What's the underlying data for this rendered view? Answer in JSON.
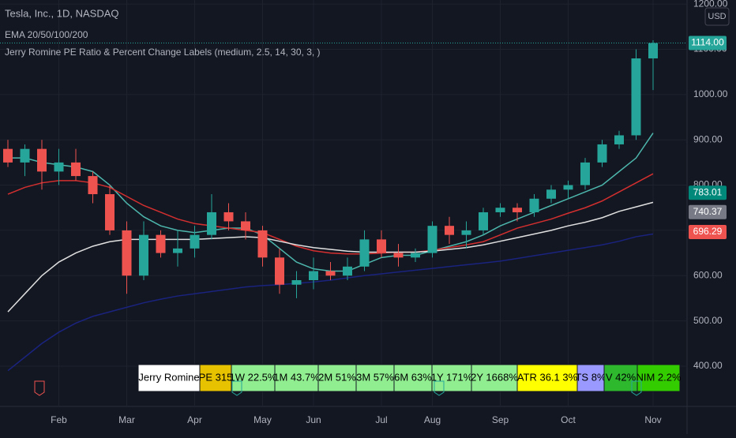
{
  "chart_data": {
    "type": "candlestick",
    "title": "Tesla, Inc., 1D, NASDAQ",
    "subtitles": [
      "EMA 20/50/100/200",
      "Jerry Romine PE Ratio & Percent Change Labels (medium, 2.5, 14, 30, 3, )"
    ],
    "currency": "USD",
    "categories": [
      null,
      null,
      null,
      "Feb",
      null,
      null,
      null,
      "Mar",
      null,
      null,
      null,
      "Apr",
      null,
      null,
      null,
      "May",
      null,
      null,
      "Jun",
      null,
      null,
      null,
      "Jul",
      null,
      null,
      "Aug",
      null,
      null,
      null,
      "Sep",
      null,
      null,
      null,
      "Oct",
      null,
      null,
      null,
      null,
      "Nov"
    ],
    "open": [
      880,
      850,
      880,
      830,
      850,
      820,
      780,
      700,
      600,
      690,
      650,
      660,
      690,
      740,
      720,
      700,
      640,
      580,
      590,
      610,
      600,
      620,
      680,
      650,
      640,
      650,
      710,
      690,
      700,
      740,
      750,
      740,
      770,
      790,
      800,
      850,
      890,
      910,
      1080
    ],
    "high": [
      900,
      890,
      900,
      880,
      880,
      830,
      800,
      720,
      720,
      700,
      700,
      710,
      780,
      760,
      740,
      710,
      660,
      610,
      640,
      630,
      640,
      700,
      700,
      670,
      660,
      720,
      730,
      720,
      750,
      760,
      760,
      780,
      800,
      810,
      860,
      900,
      920,
      1100,
      1120
    ],
    "low": [
      840,
      820,
      790,
      800,
      810,
      760,
      690,
      560,
      590,
      640,
      620,
      640,
      680,
      700,
      680,
      620,
      560,
      550,
      570,
      590,
      590,
      610,
      640,
      620,
      630,
      640,
      670,
      660,
      690,
      730,
      720,
      730,
      760,
      770,
      790,
      840,
      880,
      900,
      1010
    ],
    "close": [
      850,
      880,
      830,
      850,
      820,
      780,
      700,
      600,
      690,
      650,
      660,
      690,
      740,
      720,
      700,
      640,
      580,
      590,
      610,
      600,
      620,
      680,
      650,
      640,
      650,
      710,
      690,
      700,
      740,
      750,
      740,
      770,
      790,
      800,
      850,
      890,
      910,
      1080,
      1114
    ],
    "up_color": "#26a69a",
    "down_color": "#ef5350",
    "series": [
      {
        "name": "EMA 20",
        "color": "#4db6ac",
        "values": [
          860,
          860,
          850,
          845,
          840,
          830,
          800,
          760,
          730,
          710,
          700,
          695,
          700,
          705,
          705,
          690,
          660,
          630,
          615,
          610,
          610,
          625,
          640,
          645,
          645,
          655,
          665,
          675,
          690,
          710,
          725,
          740,
          755,
          770,
          785,
          800,
          830,
          860,
          915
        ]
      },
      {
        "name": "EMA 50",
        "color": "#d32f2f",
        "values": [
          780,
          795,
          805,
          810,
          810,
          805,
          795,
          775,
          755,
          740,
          725,
          715,
          710,
          705,
          700,
          695,
          680,
          665,
          655,
          650,
          648,
          648,
          650,
          652,
          652,
          656,
          662,
          668,
          675,
          690,
          705,
          715,
          725,
          738,
          750,
          765,
          785,
          805,
          825
        ]
      },
      {
        "name": "EMA 100",
        "color": "#e0e0e0",
        "values": [
          520,
          560,
          600,
          630,
          650,
          665,
          675,
          680,
          680,
          680,
          680,
          680,
          682,
          684,
          686,
          684,
          676,
          668,
          662,
          658,
          654,
          652,
          652,
          652,
          652,
          654,
          658,
          662,
          668,
          676,
          684,
          692,
          700,
          710,
          718,
          728,
          742,
          752,
          762
        ]
      },
      {
        "name": "EMA 200",
        "color": "#1a237e",
        "values": [
          390,
          420,
          450,
          475,
          495,
          510,
          520,
          530,
          540,
          548,
          555,
          560,
          565,
          570,
          575,
          578,
          580,
          583,
          586,
          590,
          595,
          600,
          604,
          608,
          612,
          616,
          620,
          624,
          628,
          632,
          638,
          644,
          650,
          656,
          662,
          668,
          676,
          686,
          692
        ]
      }
    ],
    "ylim": [
      311,
      1209
    ],
    "yticks": [
      {
        "value": 400,
        "label": "400.00"
      },
      {
        "value": 500,
        "label": "500.00"
      },
      {
        "value": 600,
        "label": "600.00"
      },
      {
        "value": 700,
        "label": "700.00"
      },
      {
        "value": 800,
        "label": "800.00"
      },
      {
        "value": 900,
        "label": "900.00"
      },
      {
        "value": 1000,
        "label": "1000.00"
      },
      {
        "value": 1100,
        "label": "1100.00"
      },
      {
        "value": 1200,
        "label": "1200.00"
      }
    ],
    "grid": true,
    "price_labels": [
      {
        "value": 1114,
        "label": "1114.00",
        "color": "#26a69a"
      },
      {
        "value": 783.01,
        "label": "783.01",
        "color": "#00897b"
      },
      {
        "value": 740.37,
        "label": "740.37",
        "color": "#787b86"
      },
      {
        "value": 696.29,
        "label": "696.29",
        "color": "#ef5350"
      }
    ],
    "label_table": [
      {
        "text": "Jerry Romine",
        "color": "#ffffff"
      },
      {
        "text": "PE 315",
        "color": "#e6c200"
      },
      {
        "text": "1W 22.5%",
        "color": "#90ee90"
      },
      {
        "text": "1M 43.7%",
        "color": "#90ee90"
      },
      {
        "text": "2M 51%",
        "color": "#90ee90"
      },
      {
        "text": "3M 57%",
        "color": "#90ee90"
      },
      {
        "text": "6M 63%",
        "color": "#90ee90"
      },
      {
        "text": "1Y 171%",
        "color": "#90ee90"
      },
      {
        "text": "2Y 1668%",
        "color": "#90ee90"
      },
      {
        "text": "ATR 36.1 3%",
        "color": "#ffff00"
      },
      {
        "text": "TS 8%",
        "color": "#9999ff"
      },
      {
        "text": "V 42%",
        "color": "#2db82d"
      },
      {
        "text": "NIM 2.2%",
        "color": "#33cc00"
      }
    ]
  }
}
